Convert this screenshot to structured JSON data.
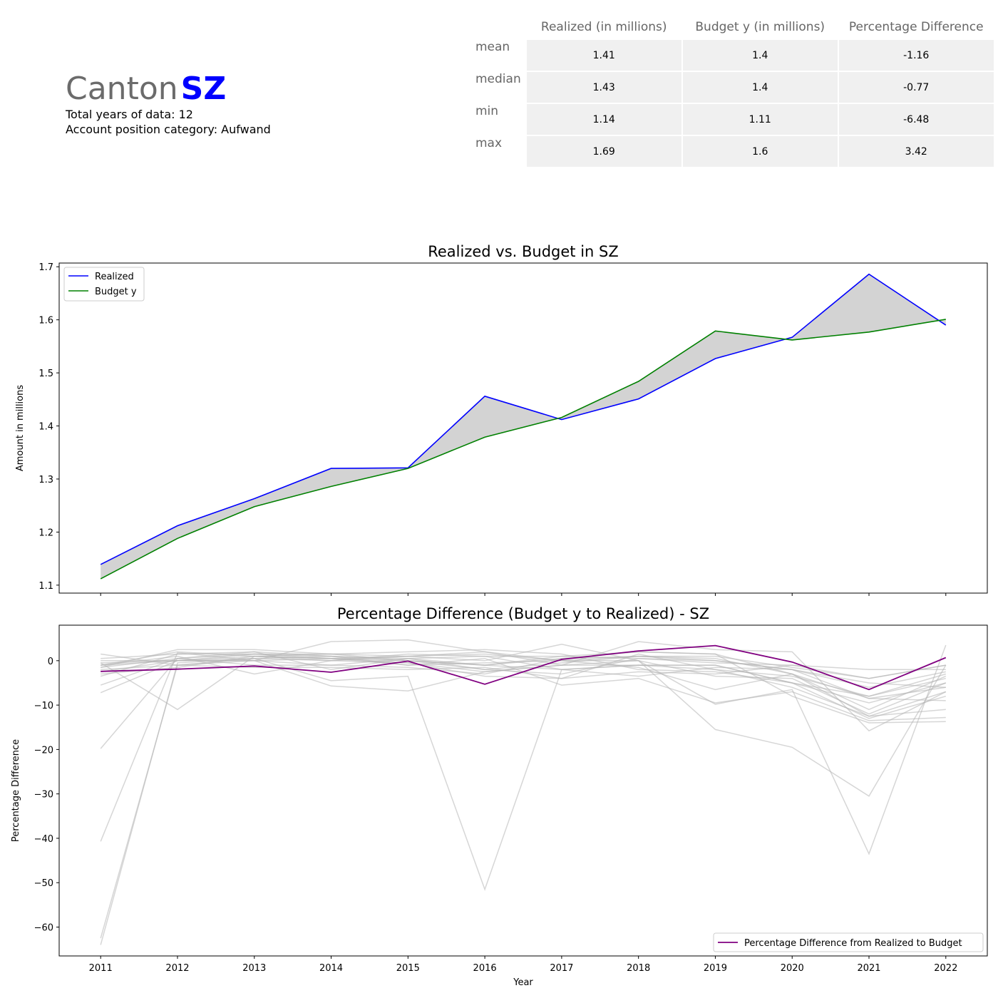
{
  "header": {
    "canton_word": "Canton",
    "canton_code": "SZ",
    "total_years": "Total years of data: 12",
    "category": "Account position category: Aufwand"
  },
  "stats_table": {
    "columns": [
      "Realized (in millions)",
      "Budget y (in millions)",
      "Percentage Difference"
    ],
    "rows": [
      {
        "label": "mean",
        "values": [
          "1.41",
          "1.4",
          "-1.16"
        ]
      },
      {
        "label": "median",
        "values": [
          "1.43",
          "1.4",
          "-0.77"
        ]
      },
      {
        "label": "min",
        "values": [
          "1.14",
          "1.11",
          "-6.48"
        ]
      },
      {
        "label": "max",
        "values": [
          "1.69",
          "1.6",
          "3.42"
        ]
      }
    ]
  },
  "chart_data": [
    {
      "type": "line",
      "title": "Realized vs. Budget in SZ",
      "xlabel": "",
      "ylabel": "Amount in millions",
      "x": [
        2011,
        2012,
        2013,
        2014,
        2015,
        2016,
        2017,
        2018,
        2019,
        2020,
        2021,
        2022
      ],
      "xlim": [
        2010.46,
        2022.54
      ],
      "ylim": [
        1.085,
        1.707
      ],
      "yticks": [
        1.1,
        1.2,
        1.3,
        1.4,
        1.5,
        1.6,
        1.7
      ],
      "ytick_labels": [
        "1.1",
        "1.2",
        "1.3",
        "1.4",
        "1.5",
        "1.6",
        "1.7"
      ],
      "legend_position": "top-left",
      "fill_between": true,
      "series": [
        {
          "name": "Realized",
          "color": "#0000ff",
          "values": [
            1.139,
            1.212,
            1.263,
            1.32,
            1.321,
            1.456,
            1.412,
            1.451,
            1.527,
            1.567,
            1.686,
            1.59
          ]
        },
        {
          "name": "Budget y",
          "color": "#008000",
          "values": [
            1.112,
            1.188,
            1.248,
            1.286,
            1.32,
            1.379,
            1.416,
            1.484,
            1.579,
            1.562,
            1.577,
            1.601
          ]
        }
      ],
      "fill_color": "#d3d3d3"
    },
    {
      "type": "line",
      "title": "Percentage Difference (Budget y to Realized) - SZ",
      "xlabel": "Year",
      "ylabel": "Percentage Difference",
      "x": [
        2011,
        2012,
        2013,
        2014,
        2015,
        2016,
        2017,
        2018,
        2019,
        2020,
        2021,
        2022
      ],
      "xtick_labels": [
        "2011",
        "2012",
        "2013",
        "2014",
        "2015",
        "2016",
        "2017",
        "2018",
        "2019",
        "2020",
        "2021",
        "2022"
      ],
      "xlim": [
        2010.46,
        2022.54
      ],
      "ylim": [
        -66.5,
        8.0
      ],
      "yticks": [
        0,
        -10,
        -20,
        -30,
        -40,
        -50,
        -60
      ],
      "ytick_labels": [
        "0",
        "−10",
        "−20",
        "−30",
        "−40",
        "−50",
        "−60"
      ],
      "legend_position": "bottom-right",
      "highlight": {
        "name": "Percentage Difference from Realized to Budget",
        "color": "#800080",
        "values": [
          -2.4,
          -1.9,
          -1.2,
          -2.6,
          -0.1,
          -5.3,
          0.3,
          2.2,
          3.4,
          -0.3,
          -6.5,
          0.7
        ]
      },
      "background_color": "#b4b4b4",
      "background_series": [
        [
          1.5,
          -1.0,
          0.5,
          1.0,
          0.5,
          -1.0,
          1.0,
          0.5,
          -0.5,
          -1.0,
          -4.0,
          -1.0
        ],
        [
          -1.5,
          2.5,
          2.5,
          1.5,
          1.0,
          2.0,
          0.0,
          1.0,
          1.0,
          -1.5,
          -4.0,
          -1.0
        ],
        [
          -3.5,
          1.5,
          1.5,
          1.0,
          0.0,
          -1.0,
          -2.0,
          -1.0,
          -2.0,
          -3.5,
          -8.0,
          -3.0
        ],
        [
          -5.5,
          0.5,
          2.0,
          -2.0,
          0.5,
          -2.0,
          -3.0,
          0.5,
          0.0,
          -2.0,
          -6.0,
          -2.5
        ],
        [
          -7.2,
          0.0,
          1.0,
          1.5,
          2.0,
          2.5,
          1.5,
          -2.0,
          -2.5,
          -5.0,
          -8.0,
          -4.0
        ],
        [
          -19.8,
          0.5,
          -1.0,
          -1.0,
          -1.5,
          -3.0,
          0.5,
          2.0,
          1.5,
          -3.0,
          -11.0,
          -3.5
        ],
        [
          -40.7,
          1.8,
          0.0,
          0.5,
          -1.0,
          -0.5,
          0.0,
          0.0,
          -3.5,
          -4.0,
          -12.0,
          -5.0
        ],
        [
          -62.5,
          -1.0,
          -1.5,
          -1.5,
          -2.0,
          -1.5,
          -4.0,
          1.5,
          -2.0,
          -6.0,
          -12.5,
          -7.0
        ],
        [
          -64.0,
          -0.5,
          0.5,
          0.0,
          -0.5,
          -2.5,
          -1.0,
          -1.0,
          -1.0,
          -5.0,
          -13.0,
          -8.0
        ],
        [
          -0.5,
          -11.0,
          1.0,
          0.5,
          0.0,
          -1.0,
          0.5,
          1.0,
          0.0,
          -2.0,
          -5.0,
          -6.0
        ],
        [
          -1.0,
          1.0,
          -3.0,
          0.0,
          1.0,
          1.5,
          0.0,
          -1.5,
          -6.5,
          -3.0,
          -8.5,
          -9.0
        ],
        [
          0.0,
          0.0,
          0.0,
          4.3,
          4.7,
          2.0,
          -1.0,
          4.3,
          2.5,
          2.0,
          -15.8,
          -7.0
        ],
        [
          -0.5,
          0.0,
          0.5,
          -4.5,
          -3.5,
          -51.5,
          -2.0,
          -3.5,
          -1.5,
          -2.0,
          -8.5,
          -6.0
        ],
        [
          -2.0,
          -1.0,
          0.0,
          -5.7,
          -6.8,
          -2.5,
          -1.0,
          0.0,
          -9.8,
          -6.5,
          -43.5,
          3.5
        ],
        [
          -1.5,
          0.5,
          1.5,
          0.5,
          1.0,
          0.0,
          3.7,
          0.0,
          -15.5,
          -19.5,
          -30.5,
          -1.0
        ],
        [
          0.5,
          1.5,
          2.0,
          1.0,
          -1.0,
          0.5,
          -5.5,
          -4.0,
          -9.5,
          -7.0,
          -13.5,
          -12.8
        ],
        [
          -3.0,
          -1.5,
          1.0,
          0.0,
          1.5,
          1.0,
          1.0,
          2.0,
          1.5,
          -8.0,
          -14.0,
          -13.7
        ],
        [
          -1.0,
          0.0,
          1.5,
          1.5,
          0.0,
          -2.0,
          -0.5,
          1.0,
          0.5,
          -3.0,
          -12.5,
          -11.0
        ],
        [
          -2.5,
          0.0,
          0.0,
          -1.0,
          0.5,
          1.0,
          -2.0,
          -1.0,
          -1.0,
          -5.0,
          -9.5,
          -5.0
        ],
        [
          -1.0,
          2.0,
          1.0,
          0.5,
          -0.5,
          -3.5,
          -4.0,
          -2.5,
          -3.0,
          -1.0,
          -2.0,
          -2.0
        ]
      ]
    }
  ]
}
